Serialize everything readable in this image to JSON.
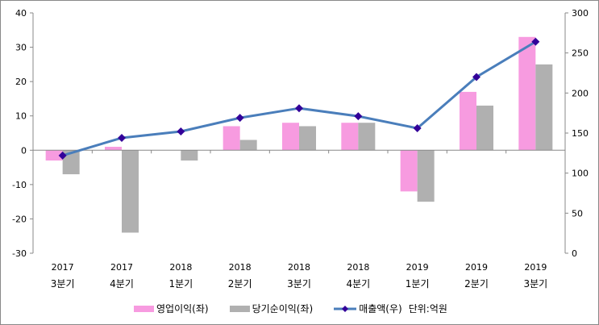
{
  "chart_data": {
    "type": "bar",
    "categories_year": [
      "2017",
      "2017",
      "2018",
      "2018",
      "2018",
      "2018",
      "2019",
      "2019",
      "2019"
    ],
    "categories_quarter": [
      "3분기",
      "4분기",
      "1분기",
      "2분기",
      "3분기",
      "4분기",
      "1분기",
      "2분기",
      "3분기"
    ],
    "series": [
      {
        "name": "영업이익(좌)",
        "type": "bar",
        "axis": "left",
        "color": "#f79be0",
        "values": [
          -3,
          1,
          0,
          7,
          8,
          8,
          -12,
          17,
          33
        ]
      },
      {
        "name": "당기순이익(좌)",
        "type": "bar",
        "axis": "left",
        "color": "#b0b0b0",
        "values": [
          -7,
          -24,
          -3,
          3,
          7,
          8,
          -15,
          13,
          25
        ]
      },
      {
        "name": "매출액(우)",
        "type": "line",
        "axis": "right",
        "color": "#4a7ebb",
        "marker_color": "#330099",
        "values": [
          122,
          144,
          152,
          169,
          181,
          171,
          156,
          220,
          264
        ]
      }
    ],
    "left_axis": {
      "ylim": [
        -30,
        40
      ],
      "ticks": [
        "40",
        "30",
        "20",
        "10",
        "0",
        "-10",
        "-20",
        "-30"
      ]
    },
    "right_axis": {
      "ylim": [
        0,
        300
      ],
      "ticks": [
        "300",
        "250",
        "200",
        "150",
        "100",
        "50",
        "0"
      ]
    },
    "unit_note": "단위:억원",
    "legend_position": "bottom"
  }
}
